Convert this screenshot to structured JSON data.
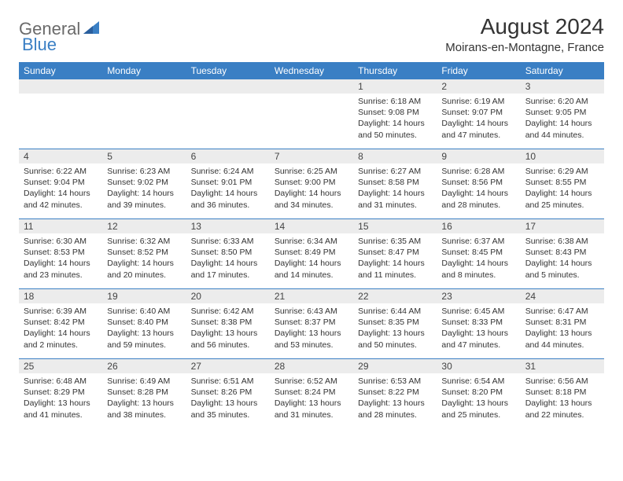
{
  "logo": {
    "general": "General",
    "blue": "Blue"
  },
  "title": "August 2024",
  "location": "Moirans-en-Montagne, France",
  "weekdays": [
    "Sunday",
    "Monday",
    "Tuesday",
    "Wednesday",
    "Thursday",
    "Friday",
    "Saturday"
  ],
  "colors": {
    "header_bg": "#3a7fc4",
    "daynum_bg": "#ececec",
    "week_border": "#3a7fc4",
    "text": "#333333"
  },
  "weeks": [
    [
      null,
      null,
      null,
      null,
      {
        "n": "1",
        "sunrise": "6:18 AM",
        "sunset": "9:08 PM",
        "daylight": "14 hours and 50 minutes."
      },
      {
        "n": "2",
        "sunrise": "6:19 AM",
        "sunset": "9:07 PM",
        "daylight": "14 hours and 47 minutes."
      },
      {
        "n": "3",
        "sunrise": "6:20 AM",
        "sunset": "9:05 PM",
        "daylight": "14 hours and 44 minutes."
      }
    ],
    [
      {
        "n": "4",
        "sunrise": "6:22 AM",
        "sunset": "9:04 PM",
        "daylight": "14 hours and 42 minutes."
      },
      {
        "n": "5",
        "sunrise": "6:23 AM",
        "sunset": "9:02 PM",
        "daylight": "14 hours and 39 minutes."
      },
      {
        "n": "6",
        "sunrise": "6:24 AM",
        "sunset": "9:01 PM",
        "daylight": "14 hours and 36 minutes."
      },
      {
        "n": "7",
        "sunrise": "6:25 AM",
        "sunset": "9:00 PM",
        "daylight": "14 hours and 34 minutes."
      },
      {
        "n": "8",
        "sunrise": "6:27 AM",
        "sunset": "8:58 PM",
        "daylight": "14 hours and 31 minutes."
      },
      {
        "n": "9",
        "sunrise": "6:28 AM",
        "sunset": "8:56 PM",
        "daylight": "14 hours and 28 minutes."
      },
      {
        "n": "10",
        "sunrise": "6:29 AM",
        "sunset": "8:55 PM",
        "daylight": "14 hours and 25 minutes."
      }
    ],
    [
      {
        "n": "11",
        "sunrise": "6:30 AM",
        "sunset": "8:53 PM",
        "daylight": "14 hours and 23 minutes."
      },
      {
        "n": "12",
        "sunrise": "6:32 AM",
        "sunset": "8:52 PM",
        "daylight": "14 hours and 20 minutes."
      },
      {
        "n": "13",
        "sunrise": "6:33 AM",
        "sunset": "8:50 PM",
        "daylight": "14 hours and 17 minutes."
      },
      {
        "n": "14",
        "sunrise": "6:34 AM",
        "sunset": "8:49 PM",
        "daylight": "14 hours and 14 minutes."
      },
      {
        "n": "15",
        "sunrise": "6:35 AM",
        "sunset": "8:47 PM",
        "daylight": "14 hours and 11 minutes."
      },
      {
        "n": "16",
        "sunrise": "6:37 AM",
        "sunset": "8:45 PM",
        "daylight": "14 hours and 8 minutes."
      },
      {
        "n": "17",
        "sunrise": "6:38 AM",
        "sunset": "8:43 PM",
        "daylight": "14 hours and 5 minutes."
      }
    ],
    [
      {
        "n": "18",
        "sunrise": "6:39 AM",
        "sunset": "8:42 PM",
        "daylight": "14 hours and 2 minutes."
      },
      {
        "n": "19",
        "sunrise": "6:40 AM",
        "sunset": "8:40 PM",
        "daylight": "13 hours and 59 minutes."
      },
      {
        "n": "20",
        "sunrise": "6:42 AM",
        "sunset": "8:38 PM",
        "daylight": "13 hours and 56 minutes."
      },
      {
        "n": "21",
        "sunrise": "6:43 AM",
        "sunset": "8:37 PM",
        "daylight": "13 hours and 53 minutes."
      },
      {
        "n": "22",
        "sunrise": "6:44 AM",
        "sunset": "8:35 PM",
        "daylight": "13 hours and 50 minutes."
      },
      {
        "n": "23",
        "sunrise": "6:45 AM",
        "sunset": "8:33 PM",
        "daylight": "13 hours and 47 minutes."
      },
      {
        "n": "24",
        "sunrise": "6:47 AM",
        "sunset": "8:31 PM",
        "daylight": "13 hours and 44 minutes."
      }
    ],
    [
      {
        "n": "25",
        "sunrise": "6:48 AM",
        "sunset": "8:29 PM",
        "daylight": "13 hours and 41 minutes."
      },
      {
        "n": "26",
        "sunrise": "6:49 AM",
        "sunset": "8:28 PM",
        "daylight": "13 hours and 38 minutes."
      },
      {
        "n": "27",
        "sunrise": "6:51 AM",
        "sunset": "8:26 PM",
        "daylight": "13 hours and 35 minutes."
      },
      {
        "n": "28",
        "sunrise": "6:52 AM",
        "sunset": "8:24 PM",
        "daylight": "13 hours and 31 minutes."
      },
      {
        "n": "29",
        "sunrise": "6:53 AM",
        "sunset": "8:22 PM",
        "daylight": "13 hours and 28 minutes."
      },
      {
        "n": "30",
        "sunrise": "6:54 AM",
        "sunset": "8:20 PM",
        "daylight": "13 hours and 25 minutes."
      },
      {
        "n": "31",
        "sunrise": "6:56 AM",
        "sunset": "8:18 PM",
        "daylight": "13 hours and 22 minutes."
      }
    ]
  ]
}
